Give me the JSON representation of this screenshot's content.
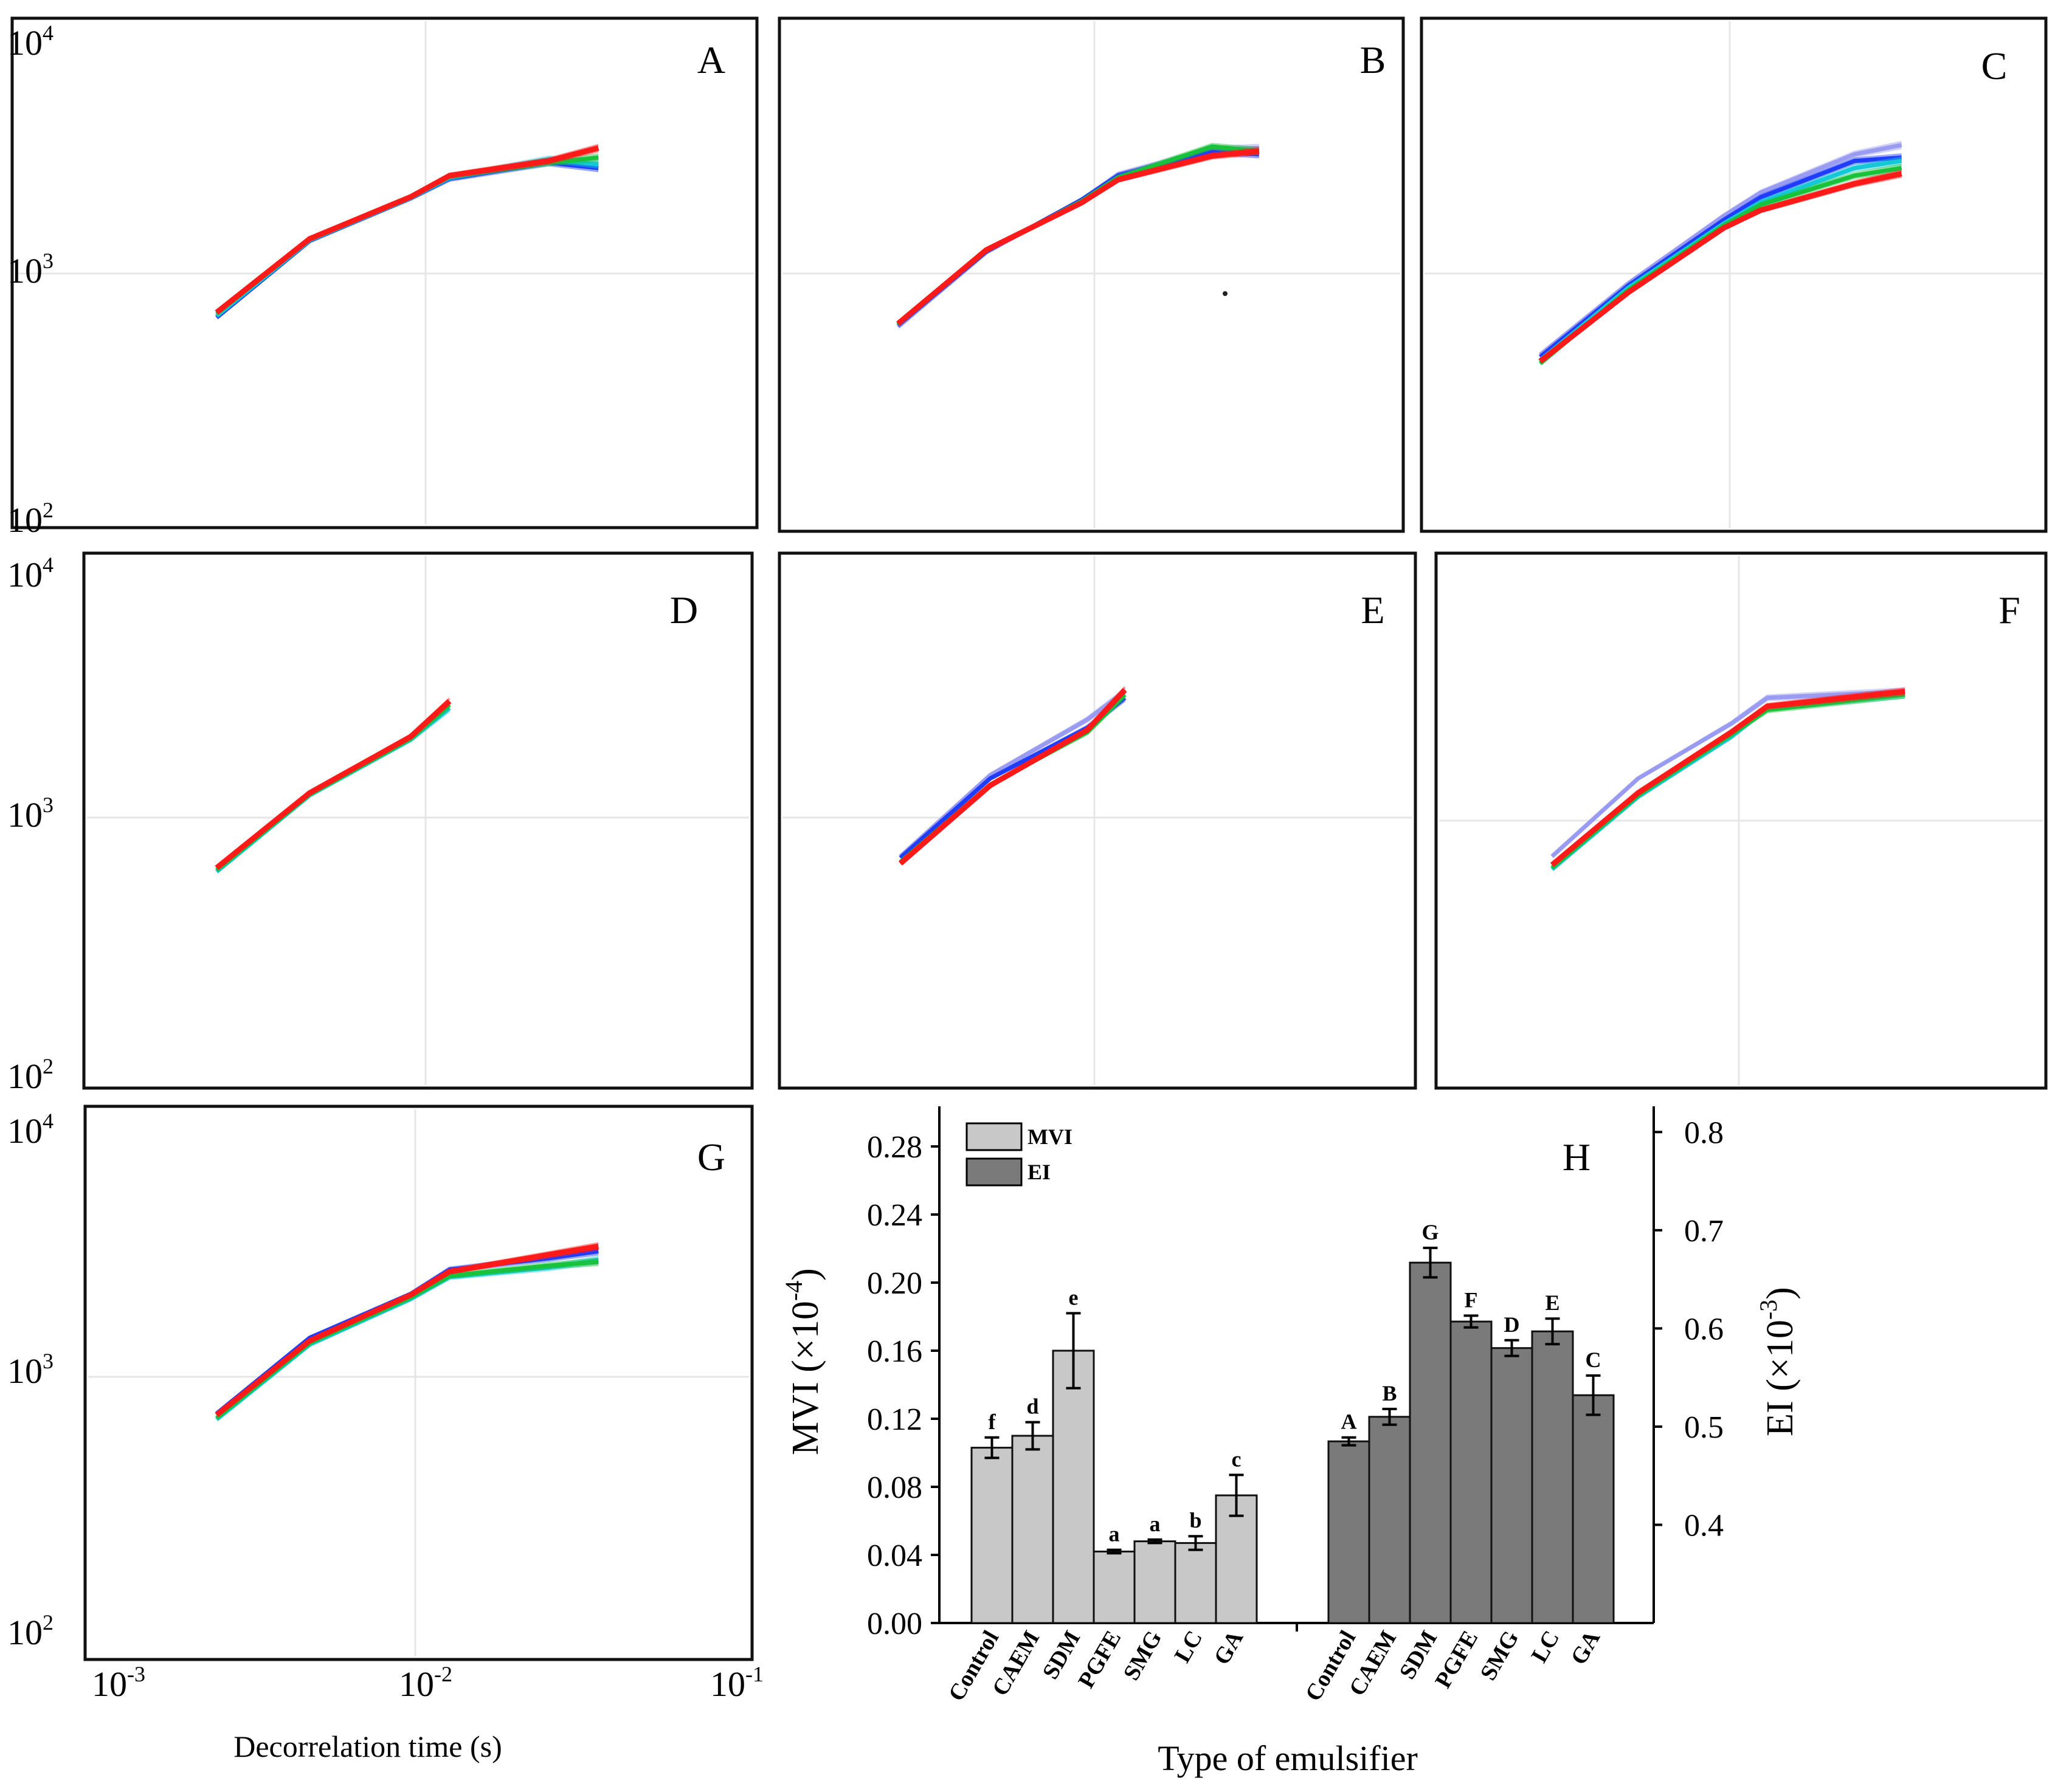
{
  "figure": {
    "y_ticks": [
      "10",
      "10",
      "10"
    ],
    "y_tick_exponents": [
      "4",
      "3",
      "2"
    ],
    "x_ticks": [
      "10",
      "10",
      "10"
    ],
    "x_tick_exponents": [
      "-3",
      "-2",
      "-1"
    ],
    "x_axis_label": "Decorrelation time (s)"
  },
  "colors": {
    "red": "#ff1a1a",
    "green": "#19c23a",
    "blue": "#1f3cff",
    "cyan": "#15c8d6",
    "lavender": "#9a9cf2",
    "light_bar": "#c8c8c8",
    "dark_bar": "#7a7a7a",
    "grid": "#e6e6e6"
  },
  "chart_data": [
    {
      "type": "line",
      "panel": "A",
      "x_scale": "log",
      "y_scale": "log",
      "xlim": [
        0.001,
        0.1
      ],
      "ylim": [
        100,
        10000
      ],
      "series": [
        {
          "color": "blue",
          "x": [
            0.0024,
            0.0046,
            0.0093,
            0.0122,
            0.0244,
            0.0345
          ],
          "y": [
            710,
            1460,
            2180,
            2620,
            3050,
            2900
          ]
        },
        {
          "color": "cyan",
          "x": [
            0.0024,
            0.0046,
            0.0093,
            0.0122,
            0.0244,
            0.0345
          ],
          "y": [
            720,
            1470,
            2190,
            2650,
            3150,
            3000
          ]
        },
        {
          "color": "green",
          "x": [
            0.0024,
            0.0046,
            0.0093,
            0.0122,
            0.0244,
            0.0345
          ],
          "y": [
            735,
            1480,
            2200,
            2680,
            3050,
            3200
          ]
        },
        {
          "color": "red",
          "x": [
            0.0024,
            0.0046,
            0.0093,
            0.0122,
            0.0244,
            0.0345
          ],
          "y": [
            745,
            1490,
            2210,
            2700,
            3100,
            3500
          ]
        }
      ]
    },
    {
      "type": "line",
      "panel": "B",
      "x_scale": "log",
      "y_scale": "log",
      "xlim": [
        0.001,
        0.1
      ],
      "ylim": [
        100,
        10000
      ],
      "series": [
        {
          "color": "lavender",
          "x": [
            0.0024,
            0.0046,
            0.0093,
            0.0122,
            0.0244,
            0.0345
          ],
          "y": [
            650,
            1310,
            2140,
            2730,
            3450,
            3500
          ]
        },
        {
          "color": "blue",
          "x": [
            0.0024,
            0.0046,
            0.0093,
            0.0122,
            0.0244,
            0.0345
          ],
          "y": [
            660,
            1320,
            2150,
            2700,
            3380,
            3300
          ]
        },
        {
          "color": "green",
          "x": [
            0.0024,
            0.0046,
            0.0093,
            0.0122,
            0.0244,
            0.0345
          ],
          "y": [
            665,
            1330,
            2120,
            2650,
            3550,
            3400
          ]
        },
        {
          "color": "red",
          "x": [
            0.0024,
            0.0046,
            0.0093,
            0.0122,
            0.0244,
            0.0345
          ],
          "y": [
            670,
            1340,
            2090,
            2600,
            3250,
            3400
          ]
        }
      ]
    },
    {
      "type": "line",
      "panel": "C",
      "x_scale": "log",
      "y_scale": "log",
      "xlim": [
        0.001,
        0.1
      ],
      "ylim": [
        100,
        10000
      ],
      "series": [
        {
          "color": "lavender",
          "x": [
            0.0024,
            0.0046,
            0.0093,
            0.0122,
            0.0244,
            0.0345
          ],
          "y": [
            500,
            980,
            1850,
            2300,
            3300,
            3600
          ]
        },
        {
          "color": "blue",
          "x": [
            0.0024,
            0.0046,
            0.0093,
            0.0122,
            0.0244,
            0.0345
          ],
          "y": [
            490,
            960,
            1780,
            2200,
            3100,
            3200
          ]
        },
        {
          "color": "cyan",
          "x": [
            0.0024,
            0.0046,
            0.0093,
            0.0122,
            0.0244,
            0.0345
          ],
          "y": [
            475,
            940,
            1720,
            2100,
            2900,
            3100
          ]
        },
        {
          "color": "green",
          "x": [
            0.0024,
            0.0046,
            0.0093,
            0.0122,
            0.0244,
            0.0345
          ],
          "y": [
            460,
            920,
            1690,
            2050,
            2700,
            2900
          ]
        },
        {
          "color": "red",
          "x": [
            0.0024,
            0.0046,
            0.0093,
            0.0122,
            0.0244,
            0.0345
          ],
          "y": [
            470,
            900,
            1650,
            1950,
            2500,
            2750
          ]
        }
      ]
    },
    {
      "type": "line",
      "panel": "D",
      "x_scale": "log",
      "y_scale": "log",
      "xlim": [
        0.001,
        0.1
      ],
      "ylim": [
        100,
        10000
      ],
      "series": [
        {
          "color": "cyan",
          "x": [
            0.0024,
            0.0046,
            0.0093,
            0.0122
          ],
          "y": [
            715,
            1420,
            2340,
            3100
          ]
        },
        {
          "color": "green",
          "x": [
            0.0024,
            0.0046,
            0.0093,
            0.0122
          ],
          "y": [
            725,
            1430,
            2360,
            3200
          ]
        },
        {
          "color": "red",
          "x": [
            0.0024,
            0.0046,
            0.0093,
            0.0122
          ],
          "y": [
            740,
            1450,
            2400,
            3300
          ]
        }
      ]
    },
    {
      "type": "line",
      "panel": "E",
      "x_scale": "log",
      "y_scale": "log",
      "xlim": [
        0.001,
        0.1
      ],
      "ylim": [
        100,
        10000
      ],
      "series": [
        {
          "color": "lavender",
          "x": [
            0.0024,
            0.0046,
            0.0093,
            0.0122
          ],
          "y": [
            820,
            1700,
            2800,
            3600
          ]
        },
        {
          "color": "blue",
          "x": [
            0.0024,
            0.0046,
            0.0093,
            0.0122
          ],
          "y": [
            810,
            1650,
            2600,
            3400
          ]
        },
        {
          "color": "green",
          "x": [
            0.0024,
            0.0046,
            0.0093,
            0.0122
          ],
          "y": [
            780,
            1560,
            2500,
            3500
          ]
        },
        {
          "color": "red",
          "x": [
            0.0024,
            0.0046,
            0.0093,
            0.0122
          ],
          "y": [
            770,
            1550,
            2550,
            3650
          ]
        }
      ]
    },
    {
      "type": "line",
      "panel": "F",
      "x_scale": "log",
      "y_scale": "log",
      "xlim": [
        0.001,
        0.1
      ],
      "ylim": [
        100,
        10000
      ],
      "series": [
        {
          "color": "lavender",
          "x": [
            0.0024,
            0.0046,
            0.0093,
            0.0122,
            0.0345
          ],
          "y": [
            820,
            1650,
            2700,
            3400,
            3600
          ]
        },
        {
          "color": "cyan",
          "x": [
            0.0024,
            0.0046,
            0.0093,
            0.0122,
            0.0345
          ],
          "y": [
            730,
            1400,
            2400,
            3100,
            3500
          ]
        },
        {
          "color": "green",
          "x": [
            0.0024,
            0.0046,
            0.0093,
            0.0122,
            0.0345
          ],
          "y": [
            740,
            1420,
            2450,
            3050,
            3500
          ]
        },
        {
          "color": "red",
          "x": [
            0.0024,
            0.0046,
            0.0093,
            0.0122,
            0.0345
          ],
          "y": [
            760,
            1450,
            2500,
            3150,
            3600
          ]
        }
      ]
    },
    {
      "type": "line",
      "panel": "G",
      "x_scale": "log",
      "y_scale": "log",
      "xlim": [
        0.001,
        0.1
      ],
      "ylim": [
        100,
        10000
      ],
      "series": [
        {
          "color": "blue",
          "x": [
            0.0024,
            0.0046,
            0.0093,
            0.0122,
            0.0244,
            0.0345
          ],
          "y": [
            770,
            1520,
            2250,
            2800,
            3100,
            3300
          ]
        },
        {
          "color": "cyan",
          "x": [
            0.0024,
            0.0046,
            0.0093,
            0.0122,
            0.0244,
            0.0345
          ],
          "y": [
            730,
            1430,
            2150,
            2620,
            2850,
            3050
          ]
        },
        {
          "color": "green",
          "x": [
            0.0024,
            0.0046,
            0.0093,
            0.0122,
            0.0244,
            0.0345
          ],
          "y": [
            740,
            1450,
            2180,
            2650,
            2900,
            3000
          ]
        },
        {
          "color": "red",
          "x": [
            0.0024,
            0.0046,
            0.0093,
            0.0122,
            0.0244,
            0.0345
          ],
          "y": [
            760,
            1480,
            2230,
            2750,
            3200,
            3450
          ]
        }
      ]
    },
    {
      "type": "bar",
      "panel": "H",
      "categories": [
        "Control",
        "CAEM",
        "SDM",
        "PGFE",
        "SMG",
        "LC",
        "GA"
      ],
      "xlabel": "Type of emulsifier",
      "legend": [
        "MVI",
        "EI"
      ],
      "left_axis": {
        "label": "MVI (×10",
        "label_exponent": "-4",
        "label_close": ")",
        "ticks": [
          "0.00",
          "0.04",
          "0.08",
          "0.12",
          "0.16",
          "0.20",
          "0.24",
          "0.28"
        ],
        "ylim": [
          0,
          0.3
        ]
      },
      "right_axis": {
        "label": "EI (×10",
        "label_exponent": "-3",
        "label_close": ")",
        "ticks": [
          "0.4",
          "0.5",
          "0.6",
          "0.7",
          "0.8"
        ],
        "ylim": [
          0.3,
          0.82
        ]
      },
      "series": [
        {
          "name": "MVI",
          "axis": "left",
          "values": [
            0.103,
            0.11,
            0.16,
            0.042,
            0.048,
            0.047,
            0.075
          ],
          "errors": [
            0.006,
            0.008,
            0.022,
            0.001,
            0.001,
            0.004,
            0.012
          ],
          "letters": [
            "f",
            "d",
            "e",
            "a",
            "a",
            "b",
            "c"
          ]
        },
        {
          "name": "EI",
          "axis": "right",
          "values": [
            0.485,
            0.51,
            0.667,
            0.607,
            0.58,
            0.597,
            0.532
          ],
          "errors": [
            0.004,
            0.008,
            0.015,
            0.006,
            0.008,
            0.013,
            0.02
          ],
          "letters": [
            "A",
            "B",
            "G",
            "F",
            "D",
            "E",
            "C"
          ]
        }
      ]
    }
  ]
}
